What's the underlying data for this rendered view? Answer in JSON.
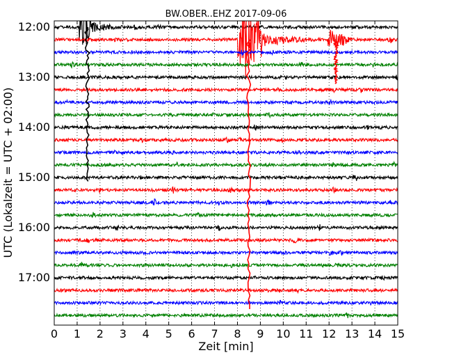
{
  "chart_data": {
    "type": "line",
    "title": "BW.OBER..EHZ 2017-09-06",
    "xlabel": "Zeit  [min]",
    "ylabel": "UTC (Lokalzeit = UTC + 02:00)",
    "xlim": [
      0,
      15
    ],
    "x_ticks": [
      "0",
      "1",
      "2",
      "3",
      "4",
      "5",
      "6",
      "7",
      "8",
      "9",
      "10",
      "11",
      "12",
      "13",
      "14",
      "15"
    ],
    "y_ticks": [
      "12:00",
      "13:00",
      "14:00",
      "15:00",
      "16:00",
      "17:00"
    ],
    "grid": "vertical dotted lines at every minute",
    "trace_interval_minutes": 15,
    "trace_colors": [
      "#000000",
      "#ff0000",
      "#0000ff",
      "#008000"
    ],
    "rows": [
      {
        "start": "12:00"
      },
      {
        "start": "12:15"
      },
      {
        "start": "12:30"
      },
      {
        "start": "12:45"
      },
      {
        "start": "13:00"
      },
      {
        "start": "13:15"
      },
      {
        "start": "13:30"
      },
      {
        "start": "13:45"
      },
      {
        "start": "14:00"
      },
      {
        "start": "14:15"
      },
      {
        "start": "14:30"
      },
      {
        "start": "14:45"
      },
      {
        "start": "15:00"
      },
      {
        "start": "15:15"
      },
      {
        "start": "15:30"
      },
      {
        "start": "15:45"
      },
      {
        "start": "16:00"
      },
      {
        "start": "16:15"
      },
      {
        "start": "16:30"
      },
      {
        "start": "16:45"
      },
      {
        "start": "17:00"
      },
      {
        "start": "17:15"
      },
      {
        "start": "17:30"
      },
      {
        "start": "17:45"
      }
    ],
    "events": [
      {
        "name": "event-a",
        "row": 0,
        "start_min": 1.1,
        "end_min": 1.6,
        "peak_rows": 2.3,
        "coda_end_min": 3.2,
        "coda_rows": 0.4,
        "spike_min": 1.45,
        "spike_rows": 12.3
      },
      {
        "name": "event-b",
        "row": 1,
        "start_min": 8.0,
        "end_min": 9.05,
        "peak_rows": 3.3,
        "coda_end_min": 11.6,
        "coda_rows": 0.55,
        "spike_min": 8.5,
        "spike_rows": 21.5
      },
      {
        "name": "event-c",
        "row": 1,
        "start_min": 11.9,
        "end_min": 12.7,
        "peak_rows": 0.9,
        "coda_end_min": 13.2,
        "coda_rows": 0.3,
        "spike_min": 12.3,
        "spike_rows": 3.5
      }
    ]
  }
}
